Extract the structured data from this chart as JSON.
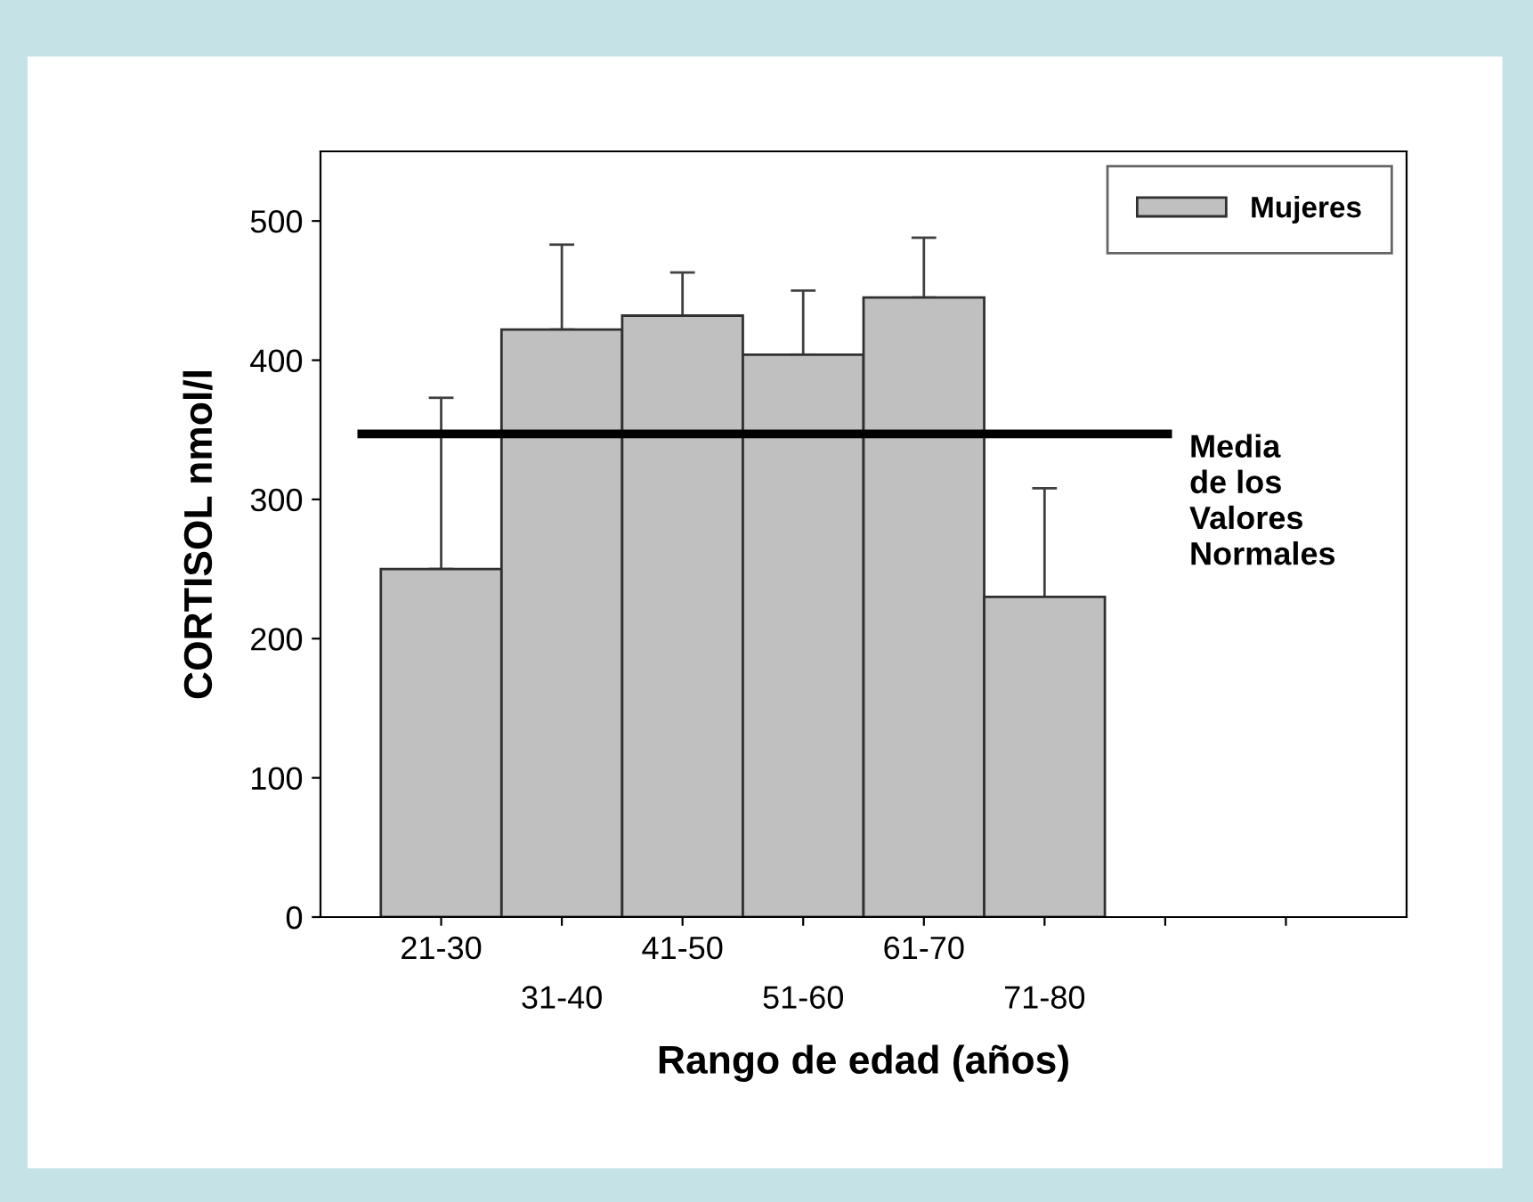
{
  "chart_data": {
    "type": "bar",
    "xlabel": "Rango de edad (años)",
    "ylabel": "CORTISOL nmol/l",
    "categories": [
      "21-30",
      "31-40",
      "41-50",
      "51-60",
      "61-70",
      "71-80",
      null,
      null
    ],
    "series": [
      {
        "name": "Mujeres",
        "color": "#c0c0c0",
        "values": [
          250,
          422,
          432,
          404,
          445,
          230,
          null,
          null
        ],
        "errors": [
          [
            250,
            373
          ],
          [
            422,
            483
          ],
          [
            432,
            463
          ],
          [
            404,
            450
          ],
          [
            445,
            488
          ],
          [
            230,
            308
          ],
          null,
          null
        ]
      }
    ],
    "ylim": [
      0,
      550
    ],
    "yticks": [
      0,
      100,
      200,
      300,
      400,
      500
    ],
    "ref_lines": [
      {
        "axis": "y",
        "value": 347,
        "label": "Media\nde los\nValores\nNormales",
        "color": "#000000"
      }
    ],
    "legend": "top right",
    "grid": false
  }
}
